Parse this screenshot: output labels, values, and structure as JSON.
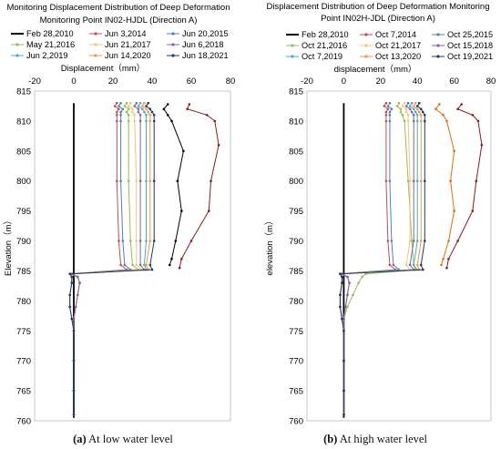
{
  "chart_data": [
    {
      "type": "line",
      "title": "Monitoring Displacement Distribution of Deep Deformation Monitoring Point IN02-HJDL (Direction A)",
      "title_lines": [
        "Monitoring Displacement Distribution of Deep Deformation",
        "Monitoring Point IN02-HJDL (Direction A)"
      ],
      "xlabel": "Displacement（mm）",
      "ylabel": "Elevation（m）",
      "xlim": [
        -20,
        80
      ],
      "ylim": [
        760,
        815
      ],
      "xticks": [
        "-20",
        "0",
        "20",
        "40",
        "60",
        "80"
      ],
      "yticks": [
        "815",
        "810",
        "805",
        "800",
        "795",
        "790",
        "785",
        "780",
        "775",
        "770",
        "765",
        "760"
      ],
      "legend_position": "top",
      "caption_label": "(a)",
      "caption_text": " At low water level",
      "series": [
        {
          "name": "Feb 28,2010",
          "color": "#000000",
          "marker": false,
          "y": [
            813,
            760.5
          ],
          "x": [
            0,
            0
          ]
        },
        {
          "name": "Jun 3,2014",
          "color": "#c0504d",
          "marker": true,
          "y": [
            813,
            812.5,
            812,
            811.5,
            811,
            810,
            800,
            790,
            786,
            785.2,
            784.5,
            784,
            783,
            781,
            779,
            777,
            775,
            770,
            765,
            761
          ],
          "x": [
            22,
            21,
            23,
            22,
            22,
            22,
            22,
            23,
            24,
            27,
            -2,
            2,
            3,
            2,
            1,
            0,
            0,
            0,
            0,
            0
          ]
        },
        {
          "name": "Jun 20,2015",
          "color": "#4f81bd",
          "marker": true,
          "y": [
            813,
            812.5,
            812,
            811.5,
            811,
            810,
            800,
            790,
            786,
            785.2,
            784.5,
            784,
            783,
            781,
            779,
            777,
            775,
            770,
            765,
            761
          ],
          "x": [
            24,
            23,
            25,
            24,
            24,
            24,
            24,
            25,
            26,
            29,
            -1,
            2,
            3,
            2,
            1,
            0,
            0,
            0,
            0,
            0
          ]
        },
        {
          "name": "May 21,2016",
          "color": "#9bbb59",
          "marker": true,
          "y": [
            813,
            812.5,
            812,
            811.5,
            811,
            810,
            800,
            790,
            786,
            785.2,
            784.5,
            784,
            783,
            781,
            779,
            777,
            775,
            770,
            765,
            761
          ],
          "x": [
            27,
            26,
            28,
            27,
            28,
            28,
            28,
            29,
            30,
            33,
            -1,
            2,
            3,
            2,
            1,
            0,
            0,
            0,
            0,
            0
          ]
        },
        {
          "name": "Jun 21,2017",
          "color": "#f2c77b",
          "marker": true,
          "y": [
            813,
            812.5,
            812,
            811.5,
            811,
            810,
            800,
            790,
            786,
            785.2,
            784.5,
            784,
            783,
            781,
            779,
            777,
            775,
            770,
            765,
            761
          ],
          "x": [
            29,
            28,
            30,
            30,
            31,
            31,
            32,
            32,
            32,
            35,
            -1,
            2,
            3,
            2,
            1,
            0,
            0,
            0,
            0,
            0
          ]
        },
        {
          "name": "Jun 6,2018",
          "color": "#8064a2",
          "marker": true,
          "y": [
            813,
            812.5,
            812,
            811.5,
            811,
            810,
            800,
            790,
            786,
            785.2,
            784.5,
            784,
            783,
            781,
            779,
            777,
            775,
            770,
            765,
            761
          ],
          "x": [
            32,
            31,
            33,
            33,
            34,
            34,
            34,
            34,
            34,
            36,
            -1,
            2,
            3,
            2,
            1,
            0,
            0,
            0,
            0,
            0
          ]
        },
        {
          "name": "Jun 2,2019",
          "color": "#4bacc6",
          "marker": true,
          "y": [
            813,
            812.5,
            812,
            811.5,
            811,
            810,
            800,
            790,
            786,
            785.2,
            784.5,
            784,
            783,
            781,
            779,
            777,
            775,
            770,
            765,
            761
          ],
          "x": [
            34,
            33,
            35,
            36,
            37,
            37,
            37,
            37,
            36,
            37,
            -2,
            -1,
            -1,
            -2,
            -2,
            -1,
            0,
            0,
            0,
            0
          ]
        },
        {
          "name": "Jun 14,2020",
          "color": "#f79646",
          "marker": true,
          "y": [
            813,
            812.5,
            812,
            811.5,
            811,
            810,
            800,
            790,
            786,
            785.2,
            784.5,
            784,
            783,
            781,
            779,
            777,
            775,
            770,
            765,
            761
          ],
          "x": [
            36,
            35,
            37,
            38,
            39,
            39,
            39,
            39,
            37,
            38,
            -2,
            -1,
            -1,
            -2,
            -2,
            -1,
            0,
            0,
            0,
            0
          ]
        },
        {
          "name": "Jun 18,2021",
          "color": "#1f3864",
          "marker": true,
          "y": [
            813,
            812.5,
            812,
            811.5,
            811,
            810,
            800,
            790,
            786,
            785.2,
            784.5,
            784,
            783,
            781,
            779,
            777,
            775,
            770,
            765,
            761
          ],
          "x": [
            38,
            37,
            39,
            40,
            41,
            41,
            41,
            41,
            39,
            40,
            -2,
            -1,
            -1,
            -2,
            -2,
            -1,
            0,
            0,
            0,
            0
          ]
        },
        {
          "name": "",
          "color": "#000000",
          "marker": true,
          "y": [
            812.8,
            812,
            811,
            810,
            805,
            800,
            795,
            790,
            787,
            786
          ],
          "x": [
            48,
            46,
            48,
            50,
            56,
            53,
            55,
            52,
            50,
            49
          ]
        },
        {
          "name": "",
          "color": "#8b1a1a",
          "marker": true,
          "y": [
            812.8,
            812,
            811,
            810,
            806,
            800,
            795,
            790,
            787,
            785.5
          ],
          "x": [
            59,
            58,
            68,
            72,
            74,
            70,
            69,
            60,
            55,
            54
          ]
        }
      ]
    },
    {
      "type": "line",
      "title": "Displacement Distribution of Deep Deformation Monitoring Point IN02H-JDL (Direction A)",
      "title_lines": [
        "Displacement Distribution of Deep Deformation Monitoring",
        "Point IN02H-JDL (Direction A)"
      ],
      "xlabel": "displacement（mm）",
      "ylabel": "elevation（m）",
      "xlim": [
        -20,
        80
      ],
      "ylim": [
        760,
        815
      ],
      "xticks": [
        "-20",
        "0",
        "20",
        "40",
        "60",
        "80"
      ],
      "yticks": [
        "815",
        "810",
        "805",
        "800",
        "795",
        "790",
        "785",
        "780",
        "775",
        "770",
        "765",
        "760"
      ],
      "legend_position": "top",
      "caption_label": "(b)",
      "caption_text": " At high water level",
      "series": [
        {
          "name": "Feb 28,2010",
          "color": "#000000",
          "marker": false,
          "y": [
            813,
            760.5
          ],
          "x": [
            0,
            0
          ]
        },
        {
          "name": "Oct 7,2014",
          "color": "#c0504d",
          "marker": true,
          "y": [
            813,
            812.5,
            812,
            811.5,
            811,
            810,
            800,
            790,
            786,
            785.2,
            784.5,
            784,
            783,
            781,
            779,
            777,
            775,
            770,
            765,
            761
          ],
          "x": [
            23,
            22,
            24,
            23,
            23,
            23,
            23,
            24,
            25,
            28,
            -2,
            2,
            3,
            2,
            1,
            0,
            0,
            0,
            0,
            0
          ]
        },
        {
          "name": "Oct 25,2015",
          "color": "#4f81bd",
          "marker": true,
          "y": [
            813,
            812.5,
            812,
            811.5,
            811,
            810,
            800,
            790,
            786,
            785.2,
            784.5,
            784,
            783,
            781,
            779,
            777,
            775,
            770,
            765,
            761
          ],
          "x": [
            25,
            24,
            26,
            25,
            25,
            25,
            25,
            26,
            27,
            30,
            -2,
            2,
            3,
            2,
            1,
            0,
            0,
            0,
            0,
            0
          ]
        },
        {
          "name": "Oct 21,2016",
          "color": "#9bbb59",
          "marker": true,
          "y": [
            813,
            812.5,
            812,
            811.5,
            811,
            810,
            800,
            790,
            786,
            785.2,
            784.5,
            784,
            783,
            781,
            779,
            777,
            775,
            770,
            765,
            761
          ],
          "x": [
            30,
            29,
            31,
            31,
            32,
            33,
            35,
            37,
            38,
            40,
            12,
            10,
            8,
            5,
            2,
            0,
            0,
            0,
            0,
            0
          ]
        },
        {
          "name": "Oct 21,2017",
          "color": "#f2c77b",
          "marker": true,
          "y": [
            813,
            812.5,
            812,
            811.5,
            811,
            810,
            800,
            790,
            786,
            785.2,
            784.5,
            784,
            783,
            781,
            779,
            777,
            775,
            770,
            765,
            761
          ],
          "x": [
            33,
            32,
            34,
            34,
            35,
            35,
            36,
            36,
            34,
            36,
            -1,
            2,
            3,
            2,
            1,
            0,
            0,
            0,
            0,
            0
          ]
        },
        {
          "name": "Oct 15,2018",
          "color": "#8064a2",
          "marker": true,
          "y": [
            813,
            812.5,
            812,
            811.5,
            811,
            810,
            800,
            790,
            786,
            785.2,
            784.5,
            784,
            783,
            781,
            779,
            777,
            775,
            770,
            765,
            761
          ],
          "x": [
            35,
            34,
            36,
            37,
            38,
            38,
            38,
            38,
            36,
            38,
            -1,
            2,
            3,
            2,
            1,
            0,
            0,
            0,
            0,
            0
          ]
        },
        {
          "name": "Oct 7,2019",
          "color": "#4bacc6",
          "marker": true,
          "y": [
            813,
            812.5,
            812,
            811.5,
            811,
            810,
            800,
            790,
            786,
            785.2,
            784.5,
            784,
            783,
            781,
            779,
            777,
            775,
            770,
            765,
            761
          ],
          "x": [
            37,
            36,
            38,
            39,
            40,
            40,
            40,
            40,
            38,
            39,
            -2,
            -1,
            -1,
            -2,
            -2,
            -1,
            0,
            0,
            0,
            0
          ]
        },
        {
          "name": "Oct 13,2020",
          "color": "#f79646",
          "marker": true,
          "y": [
            813,
            812.5,
            812,
            811.5,
            811,
            810,
            800,
            790,
            786,
            785.2,
            784.5,
            784,
            783,
            781,
            779,
            777,
            775,
            770,
            765,
            761
          ],
          "x": [
            39,
            38,
            40,
            41,
            42,
            42,
            42,
            42,
            40,
            41,
            -2,
            -1,
            -1,
            -2,
            -2,
            -1,
            0,
            0,
            0,
            0
          ]
        },
        {
          "name": "Oct 19,2021",
          "color": "#1f3864",
          "marker": true,
          "y": [
            813,
            812.5,
            812,
            811.5,
            811,
            810,
            800,
            790,
            786,
            785.2,
            784.5,
            784,
            783,
            781,
            779,
            777,
            775,
            770,
            765,
            761
          ],
          "x": [
            41,
            40,
            42,
            43,
            44,
            44,
            44,
            44,
            42,
            43,
            -2,
            -1,
            -1,
            -2,
            -2,
            -1,
            0,
            0,
            0,
            0
          ]
        },
        {
          "name": "",
          "color": "#e46c0a",
          "marker": true,
          "y": [
            812.8,
            812,
            811,
            810,
            805,
            800,
            795,
            790,
            787,
            786
          ],
          "x": [
            52,
            50,
            54,
            56,
            60,
            58,
            60,
            57,
            54,
            53
          ]
        },
        {
          "name": "",
          "color": "#8b1a1a",
          "marker": true,
          "y": [
            812.8,
            812,
            811,
            810,
            806,
            800,
            795,
            790,
            787,
            785.5
          ],
          "x": [
            64,
            62,
            70,
            73,
            75,
            72,
            70,
            62,
            57,
            56
          ]
        }
      ]
    }
  ]
}
